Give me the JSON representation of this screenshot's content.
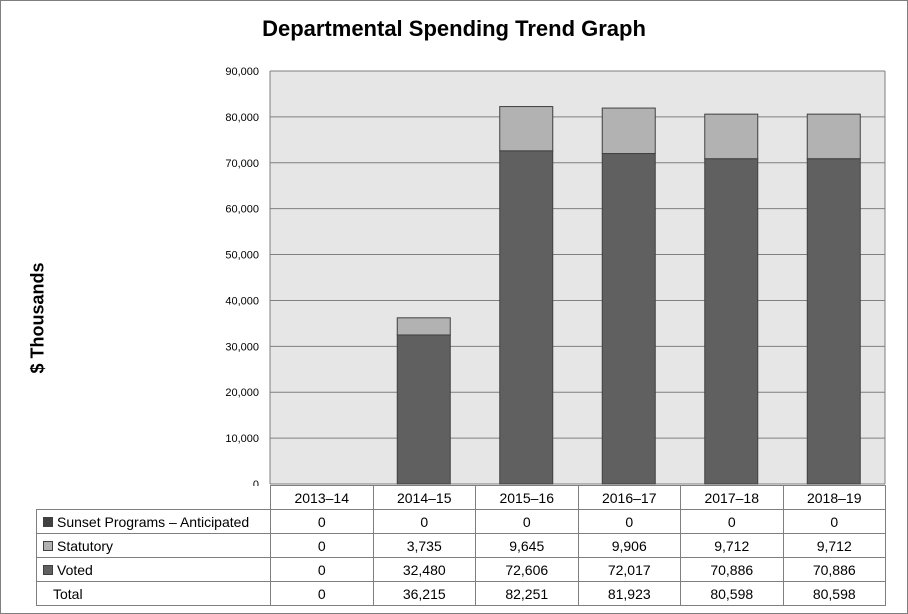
{
  "chart_data": {
    "type": "bar",
    "stacked": true,
    "title": "Departmental Spending Trend Graph",
    "xlabel": "",
    "ylabel": "$ Thousands",
    "ylim": [
      0,
      90000
    ],
    "yticks": [
      0,
      10000,
      20000,
      30000,
      40000,
      50000,
      60000,
      70000,
      80000,
      90000
    ],
    "ytick_labels": [
      "0",
      "10,000",
      "20,000",
      "30,000",
      "40,000",
      "50,000",
      "60,000",
      "70,000",
      "80,000",
      "90,000"
    ],
    "grid": true,
    "legend": "data table below plot",
    "categories": [
      "2013–14",
      "2014–15",
      "2015–16",
      "2016–17",
      "2017–18",
      "2018–19"
    ],
    "series": [
      {
        "name": "Sunset Programs – Anticipated",
        "color": "#404040",
        "values": [
          0,
          0,
          0,
          0,
          0,
          0
        ],
        "labels": [
          "0",
          "0",
          "0",
          "0",
          "0",
          "0"
        ]
      },
      {
        "name": "Statutory",
        "color": "#b2b2b2",
        "values": [
          0,
          3735,
          9645,
          9906,
          9712,
          9712
        ],
        "labels": [
          "0",
          "3,735",
          "9,645",
          "9,906",
          "9,712",
          "9,712"
        ]
      },
      {
        "name": "Voted",
        "color": "#606060",
        "values": [
          0,
          32480,
          72606,
          72017,
          70886,
          70886
        ],
        "labels": [
          "0",
          "32,480",
          "72,606",
          "72,017",
          "70,886",
          "70,886"
        ]
      }
    ],
    "totals": {
      "name": "Total",
      "values": [
        0,
        36215,
        82251,
        81923,
        80598,
        80598
      ],
      "labels": [
        "0",
        "36,215",
        "82,251",
        "81,923",
        "80,598",
        "80,598"
      ]
    }
  },
  "colors": {
    "plot_background": "#e6e6e6",
    "gridline": "#7f7f7f",
    "bar_outline": "#404040",
    "border": "#7f7f7f"
  }
}
